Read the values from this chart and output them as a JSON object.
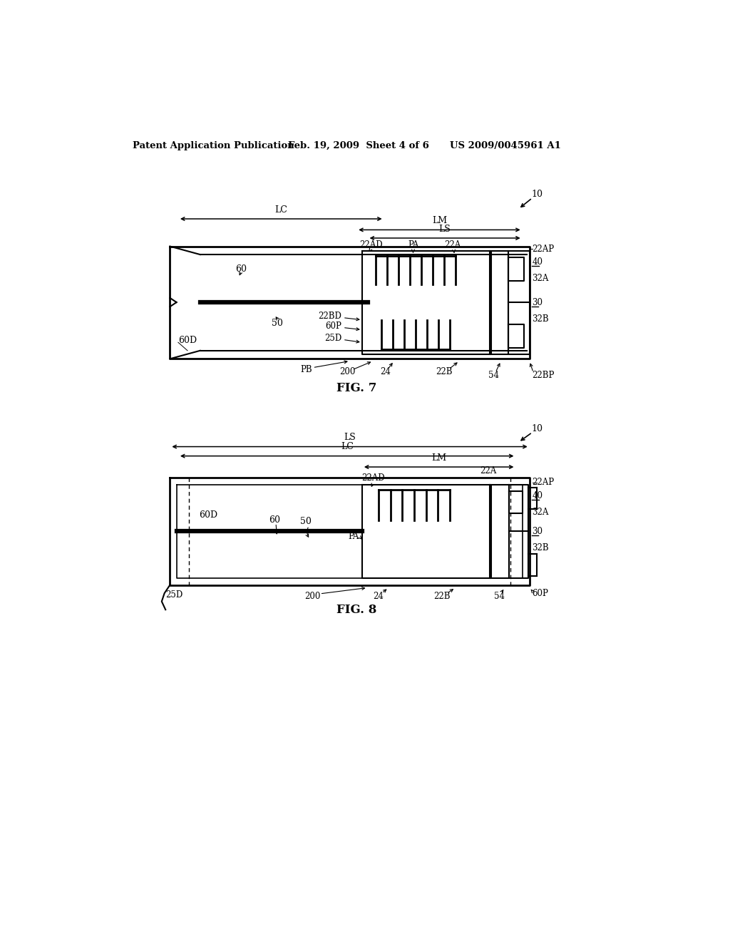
{
  "background_color": "#ffffff",
  "header_left": "Patent Application Publication",
  "header_center": "Feb. 19, 2009  Sheet 4 of 6",
  "header_right": "US 2009/0045961 A1",
  "fig7_caption": "FIG. 7",
  "fig8_caption": "FIG. 8",
  "text_color": "#000000"
}
